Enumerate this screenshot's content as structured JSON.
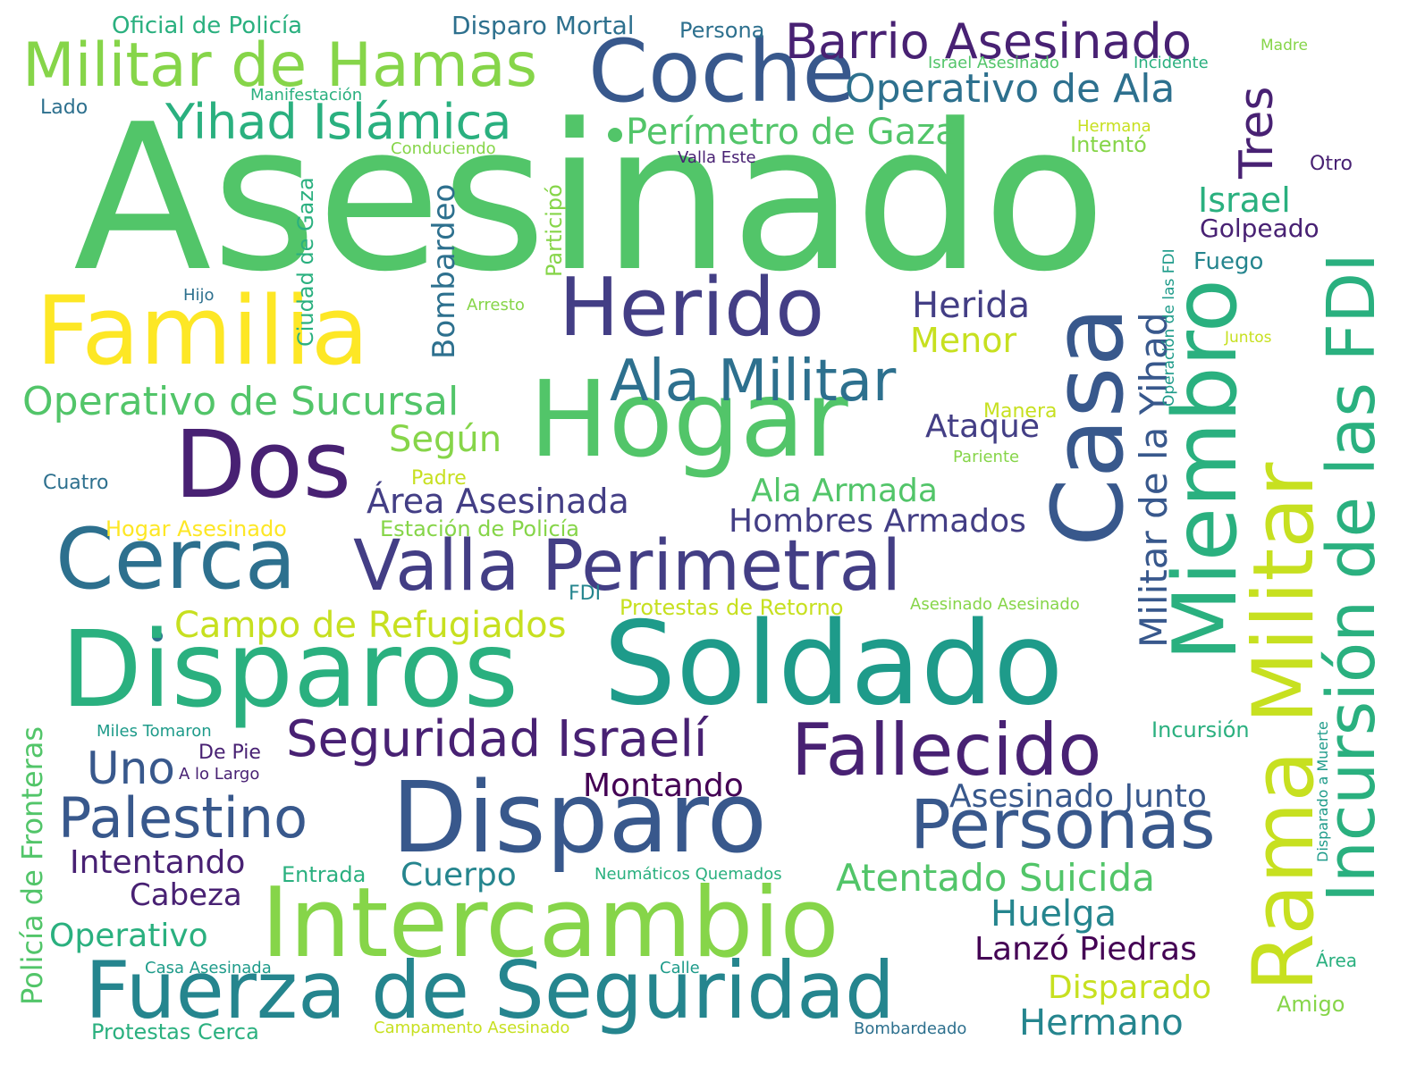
{
  "palette": {
    "c1": "#fde725",
    "c2": "#c7e020",
    "c3": "#86d549",
    "c4": "#52c569",
    "c5": "#2ab07f",
    "c6": "#1e9b8a",
    "c7": "#25858e",
    "c8": "#2d708e",
    "c9": "#38588c",
    "c10": "#433e85",
    "c11": "#482173",
    "c12": "#440154"
  },
  "words": {
    "asesinado": "Asesinado",
    "familia": "Familia",
    "hogar": "Hogar",
    "soldado": "Soldado",
    "disparos": "Disparos",
    "disparo": "Disparo",
    "intercambio": "Intercambio",
    "casa": "Casa",
    "coche": "Coche",
    "herido": "Herido",
    "dos": "Dos",
    "cerca": "Cerca",
    "valla_perimetral": "Valla Perimetral",
    "fuerza_de_seguridad": "Fuerza de Seguridad",
    "miembro": "Miembro",
    "rama_militar": "Rama Militar",
    "incursion_de_las_fdi": "Incursión de las FDI",
    "fallecido": "Fallecido",
    "personas": "Personas",
    "militar_de_hamas": "Militar de Hamas",
    "barrio_asesinado": "Barrio Asesinado",
    "yihad_islamica": "Yihad Islámica",
    "operativo_de_ala": "Operativo de Ala",
    "perimetro_de_gaza": "Perímetro de Gaza",
    "tres": "Tres",
    "ala_militar": "Ala Militar",
    "operativo_de_sucursal": "Operativo de Sucursal",
    "seguridad_israeli": "Seguridad Israelí",
    "palestino": "Palestino",
    "militar_de_la_yihad": "Militar de la Yihad",
    "campo_de_refugiados": "Campo de Refugiados",
    "atentado_suicida": "Atentado Suicida",
    "uno": "Uno",
    "herida": "Herida",
    "menor": "Menor",
    "segun": "Según",
    "area_asesinada": "Área Asesinada",
    "ala_armada": "Ala Armada",
    "hombres_armados": "Hombres Armados",
    "ataque": "Ataque",
    "israel": "Israel",
    "golpeado": "Golpeado",
    "fuego": "Fuego",
    "bombardeo": "Bombardeo",
    "ciudad_de_gaza": "Ciudad de Gaza",
    "participo": "Participó",
    "huelga": "Huelga",
    "lanzo_piedras": "Lanzó Piedras",
    "disparado": "Disparado",
    "hermano": "Hermano",
    "asesinado_junto": "Asesinado Junto",
    "montando": "Montando",
    "intentando": "Intentando",
    "cabeza": "Cabeza",
    "operativo": "Operativo",
    "cuerpo": "Cuerpo",
    "policia_de_fronteras": "Policía de Fronteras",
    "oficial_de_policia": "Oficial de Policía",
    "disparo_mortal": "Disparo Mortal",
    "persona": "Persona",
    "madre": "Madre",
    "israel_asesinado": "Israel Asesinado",
    "incidente": "Incidente",
    "manifestacion": "Manifestación",
    "lado": "Lado",
    "conduciendo": "Conduciendo",
    "hermana": "Hermana",
    "intento": "Intentó",
    "valla_este": "Valla Este",
    "otro": "Otro",
    "hijo": "Hijo",
    "arresto": "Arresto",
    "juntos": "Juntos",
    "operacion_de_las_fdi": "Operación de las FDI",
    "manera": "Manera",
    "pariente": "Pariente",
    "cuatro": "Cuatro",
    "padre": "Padre",
    "hogar_asesinado": "Hogar Asesinado",
    "estacion_de_policia": "Estación de Policía",
    "fdi": "FDI",
    "protestas_de_retorno": "Protestas de Retorno",
    "asesinado_asesinado": "Asesinado Asesinado",
    "miles_tomaron": "Miles Tomaron",
    "de_pie": "De Pie",
    "a_lo_largo": "A lo Largo",
    "incursion": "Incursión",
    "disparado_a_muerte": "Disparado a Muerte",
    "entrada": "Entrada",
    "neumaticos_quemados": "Neumáticos Quemados",
    "casa_asesinada": "Casa Asesinada",
    "calle": "Calle",
    "area": "Área",
    "amigo": "Amigo",
    "protestas_cerca": "Protestas Cerca",
    "campamento_asesinado": "Campamento Asesinado",
    "bombardeado": "Bombardeado"
  }
}
